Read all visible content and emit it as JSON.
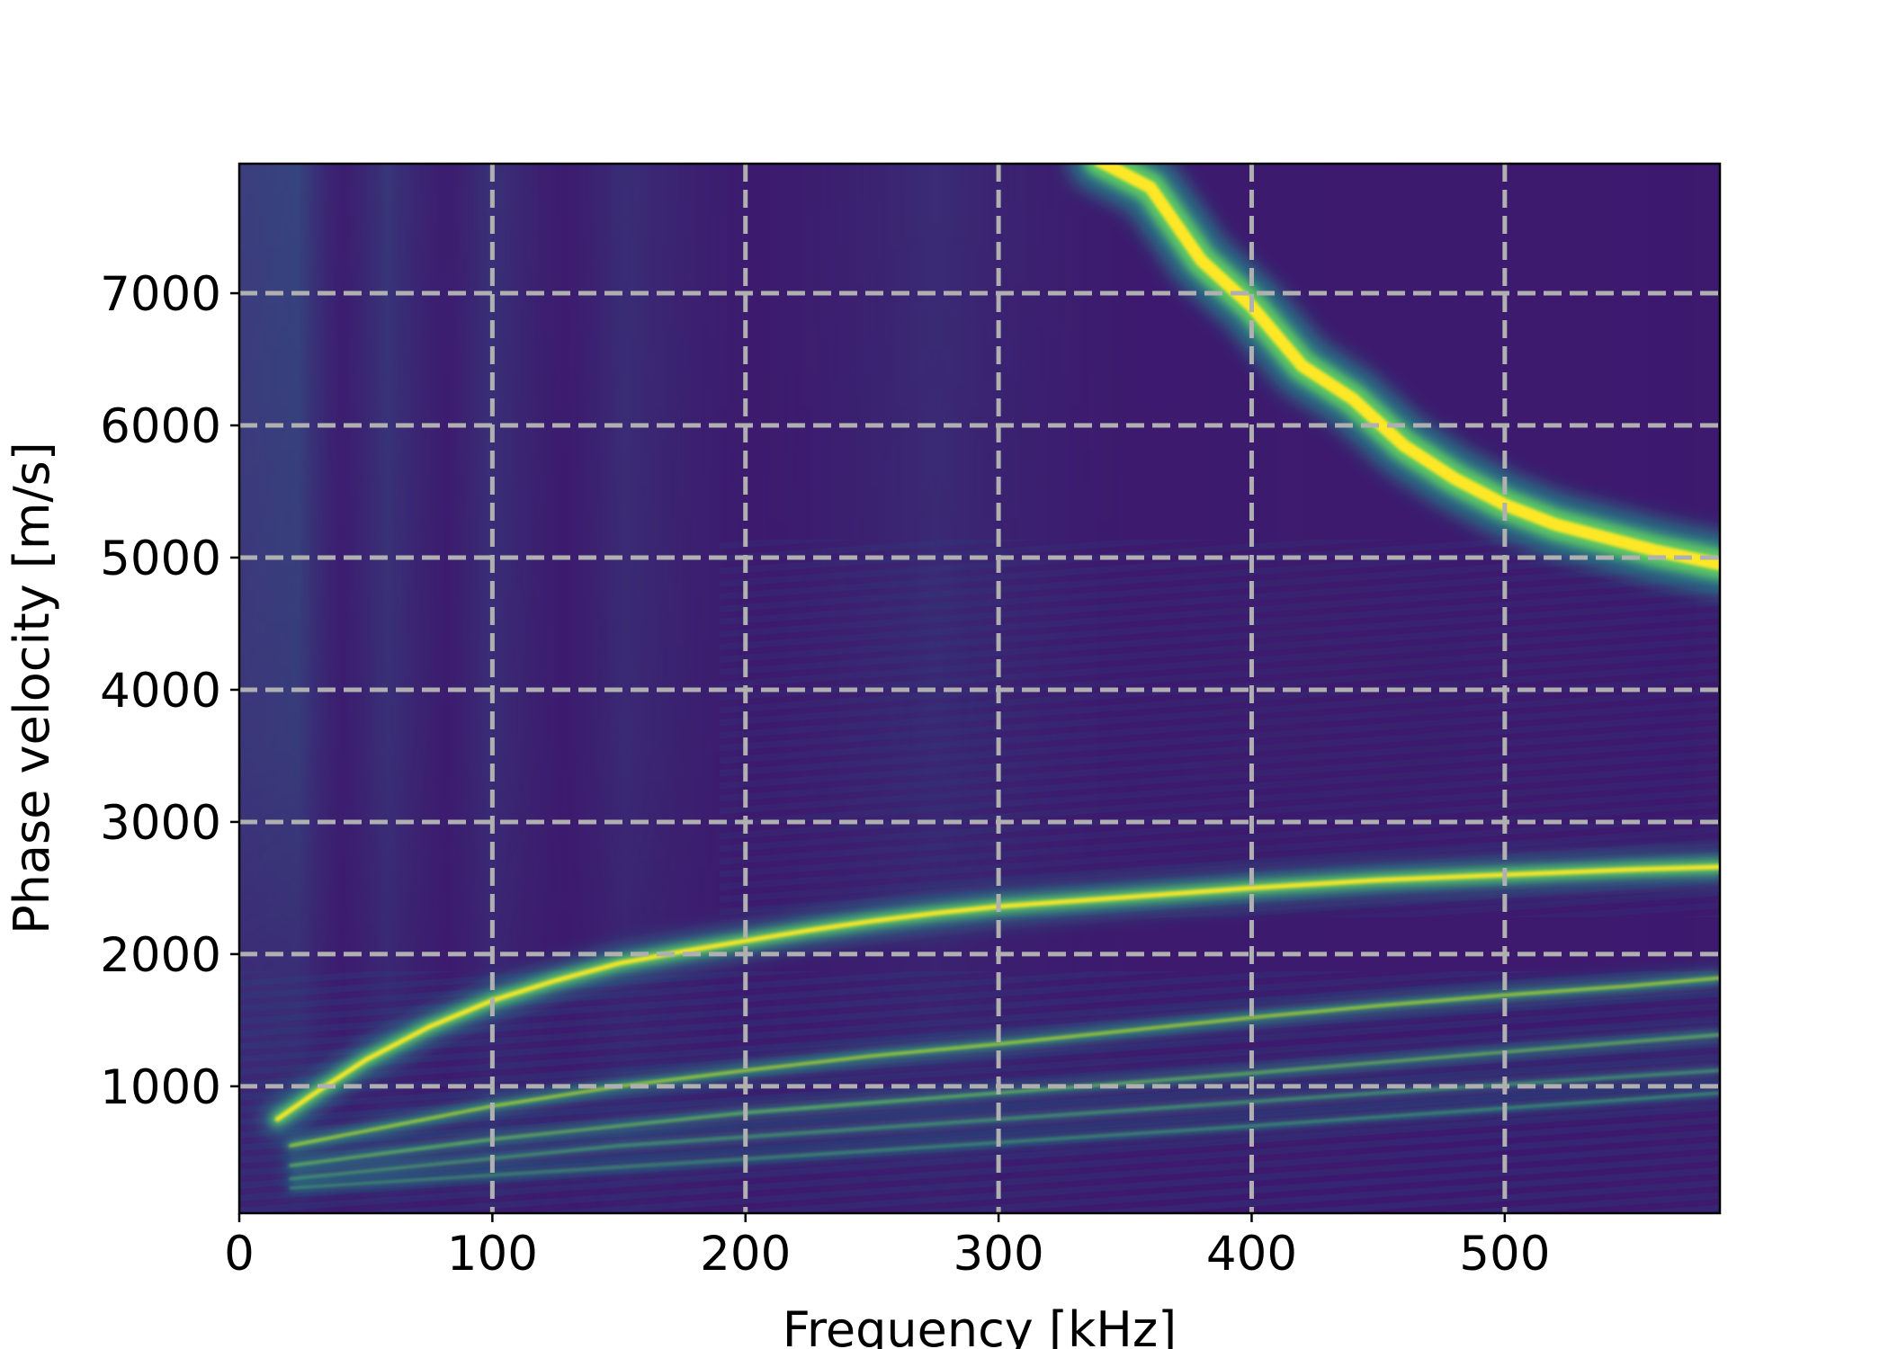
{
  "chart_data": {
    "type": "heatmap",
    "title": "",
    "xlabel": "Frequency [kHz]",
    "ylabel": "Phase velocity [m/s]",
    "xlim": [
      0,
      585
    ],
    "ylim": [
      40,
      7980
    ],
    "xticks": [
      "0",
      "100",
      "200",
      "300",
      "400",
      "500"
    ],
    "xtick_values": [
      0,
      100,
      200,
      300,
      400,
      500
    ],
    "yticks": [
      "1000",
      "2000",
      "3000",
      "4000",
      "5000",
      "6000",
      "7000"
    ],
    "ytick_values": [
      1000,
      2000,
      3000,
      4000,
      5000,
      6000,
      7000
    ],
    "grid": true,
    "grid_style": "dashed",
    "colormap": "viridis",
    "background_color": "#3d1a6e",
    "colors": {
      "low": "#440154",
      "mid": "#21918c",
      "high": "#fde725",
      "grid": "#b0b0b0"
    },
    "ridges": [
      {
        "mode": "upper",
        "points": [
          [
            340,
            8000
          ],
          [
            360,
            7800
          ],
          [
            380,
            7250
          ],
          [
            400,
            6900
          ],
          [
            420,
            6450
          ],
          [
            440,
            6200
          ],
          [
            460,
            5850
          ],
          [
            480,
            5600
          ],
          [
            500,
            5400
          ],
          [
            520,
            5250
          ],
          [
            540,
            5150
          ],
          [
            560,
            5050
          ],
          [
            585,
            4950
          ]
        ]
      },
      {
        "mode": "main",
        "points": [
          [
            15,
            750
          ],
          [
            30,
            950
          ],
          [
            50,
            1200
          ],
          [
            75,
            1450
          ],
          [
            100,
            1650
          ],
          [
            125,
            1800
          ],
          [
            150,
            1930
          ],
          [
            175,
            2020
          ],
          [
            200,
            2100
          ],
          [
            225,
            2180
          ],
          [
            250,
            2250
          ],
          [
            275,
            2310
          ],
          [
            300,
            2360
          ],
          [
            350,
            2430
          ],
          [
            400,
            2500
          ],
          [
            450,
            2560
          ],
          [
            500,
            2600
          ],
          [
            550,
            2640
          ],
          [
            585,
            2660
          ]
        ]
      },
      {
        "mode": "second",
        "points": [
          [
            20,
            550
          ],
          [
            60,
            700
          ],
          [
            100,
            850
          ],
          [
            150,
            1000
          ],
          [
            200,
            1120
          ],
          [
            250,
            1230
          ],
          [
            300,
            1320
          ],
          [
            350,
            1420
          ],
          [
            400,
            1520
          ],
          [
            450,
            1610
          ],
          [
            500,
            1690
          ],
          [
            550,
            1760
          ],
          [
            585,
            1820
          ]
        ]
      },
      {
        "mode": "third",
        "points": [
          [
            20,
            400
          ],
          [
            100,
            600
          ],
          [
            200,
            800
          ],
          [
            300,
            950
          ],
          [
            400,
            1100
          ],
          [
            500,
            1260
          ],
          [
            585,
            1390
          ]
        ]
      },
      {
        "mode": "fourth",
        "points": [
          [
            20,
            300
          ],
          [
            150,
            550
          ],
          [
            300,
            750
          ],
          [
            450,
            950
          ],
          [
            585,
            1120
          ]
        ]
      },
      {
        "mode": "fifth",
        "points": [
          [
            20,
            230
          ],
          [
            200,
            450
          ],
          [
            400,
            700
          ],
          [
            585,
            950
          ]
        ]
      }
    ]
  }
}
